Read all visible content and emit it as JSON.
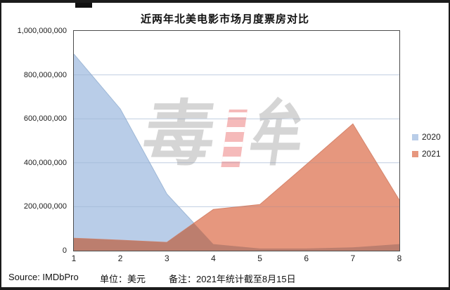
{
  "chart_data": {
    "type": "area",
    "title": "近两年北美电影市场月度票房对比",
    "x": [
      1,
      2,
      3,
      4,
      5,
      6,
      7,
      8
    ],
    "x_ticks": [
      "1",
      "2",
      "3",
      "4",
      "5",
      "6",
      "7",
      "8"
    ],
    "series": [
      {
        "name": "2020",
        "color": "#b9cde8",
        "edge_color": "#9db7d6",
        "values": [
          895000000,
          645000000,
          258000000,
          30000000,
          10000000,
          10000000,
          15000000,
          30000000
        ]
      },
      {
        "name": "2021",
        "color": "#e6977e",
        "edge_color": "#d5846b",
        "values": [
          57000000,
          48000000,
          38000000,
          188000000,
          210000000,
          392000000,
          577000000,
          230000000
        ]
      }
    ],
    "overlap_color": "#bc7e6e",
    "ylim": [
      0,
      1000000000
    ],
    "y_ticks": [
      {
        "value": 0,
        "label": "0"
      },
      {
        "value": 200000000,
        "label": "200,000,000"
      },
      {
        "value": 400000000,
        "label": "400,000,000"
      },
      {
        "value": 600000000,
        "label": "600,000,000"
      },
      {
        "value": 800000000,
        "label": "800,000,000"
      },
      {
        "value": 1000000000,
        "label": "1,000,000,000"
      }
    ],
    "gridlines": [
      200000000,
      400000000,
      600000000,
      800000000
    ],
    "gridline_color": "#d9e3f0",
    "legend_position": "right"
  },
  "footer": {
    "source": "Source: IMDbPro",
    "unit": "单位：美元",
    "note": "备注：2021年统计截至8月15日"
  },
  "watermark": {
    "text": "毒眸",
    "char_left": "毒",
    "char_right": "牟"
  }
}
